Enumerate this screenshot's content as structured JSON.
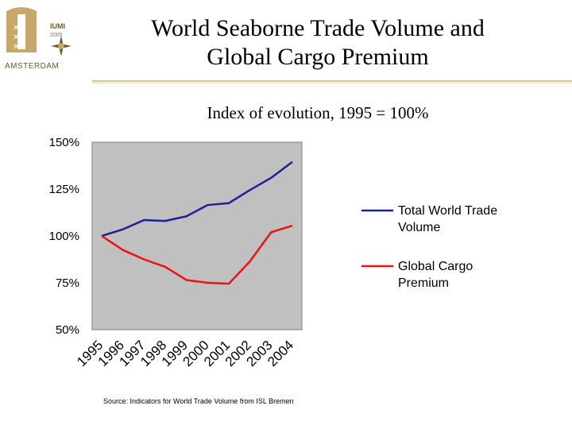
{
  "logo": {
    "text_top": "IUMI",
    "text_year": "2005",
    "text_city": "AMSTERDAM"
  },
  "slide": {
    "title_line1": "World Seaborne Trade Volume and",
    "title_line2": "Global Cargo Premium",
    "subtitle": "Index of evolution, 1995 = 100%",
    "source": "Source: Indicators for World Trade Volume from ISL Bremen"
  },
  "colors": {
    "plot_bg": "#c0c0c0",
    "trade_line": "#1f1f99",
    "premium_line": "#ee1111",
    "brand_gold": "#c8a869"
  },
  "chart_data": {
    "type": "line",
    "title": "Index of evolution, 1995 = 100%",
    "xlabel": "",
    "ylabel": "",
    "categories": [
      "1995",
      "1996",
      "1997",
      "1998",
      "1999",
      "2000",
      "2001",
      "2002",
      "2003",
      "2004"
    ],
    "ylim": [
      50,
      150
    ],
    "yticks": [
      50,
      75,
      100,
      125,
      150
    ],
    "ytick_labels": [
      "50%",
      "75%",
      "100%",
      "125%",
      "150%"
    ],
    "grid": false,
    "legend_position": "right",
    "series": [
      {
        "name": "Total World Trade Volume",
        "legend_line1": "Total World Trade",
        "legend_line2": "Volume",
        "color": "#1f1f99",
        "x": [
          1995,
          1996,
          1997,
          1998,
          1999,
          2000,
          2001,
          2002,
          2003,
          2004
        ],
        "values": [
          100,
          103.5,
          108.5,
          108,
          110.5,
          116.5,
          117.5,
          124.5,
          131,
          139.5
        ]
      },
      {
        "name": "Global Cargo Premium",
        "legend_line1": "Global Cargo",
        "legend_line2": "Premium",
        "color": "#ee1111",
        "x": [
          1995,
          1996,
          1997,
          1998,
          1999,
          2000,
          2001,
          2002,
          2003,
          2004
        ],
        "values": [
          100,
          92.5,
          87.5,
          83.5,
          76.5,
          75,
          74.5,
          86.5,
          102,
          105.5
        ]
      }
    ]
  }
}
